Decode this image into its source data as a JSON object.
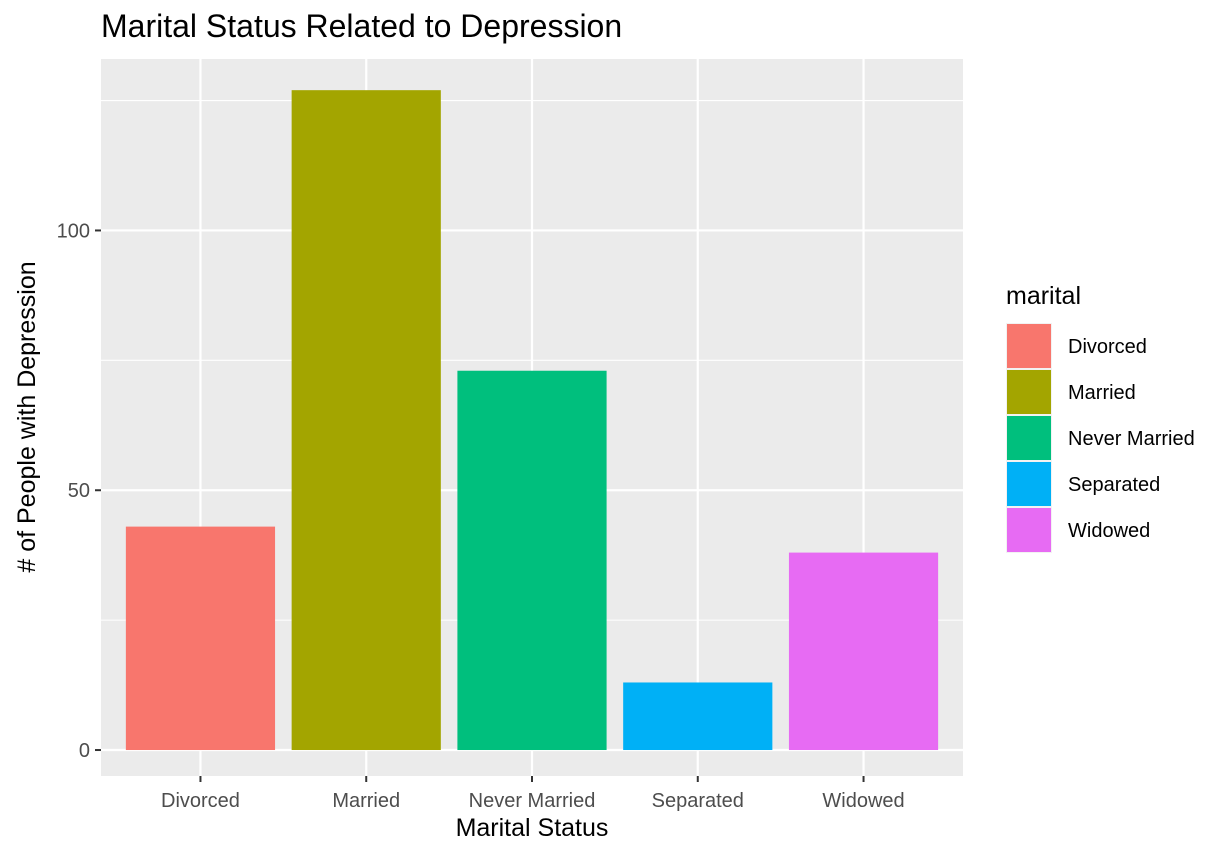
{
  "chart_data": {
    "type": "bar",
    "title": "Marital Status Related to Depression",
    "xlabel": "Marital Status",
    "ylabel": "# of People with Depression",
    "categories": [
      "Divorced",
      "Married",
      "Never Married",
      "Separated",
      "Widowed"
    ],
    "values": [
      43,
      127,
      73,
      13,
      38
    ],
    "colors": [
      "#F8766D",
      "#A3A500",
      "#00BF7D",
      "#00B0F6",
      "#E76BF3"
    ],
    "ylim": [
      -5,
      133
    ],
    "yticks": [
      0,
      50,
      100
    ],
    "ytick_labels": [
      "0",
      "50",
      "100"
    ],
    "grid": true,
    "legend": {
      "title": "marital",
      "position": "right",
      "entries": [
        "Divorced",
        "Married",
        "Never Married",
        "Separated",
        "Widowed"
      ]
    },
    "panel_background": "#EBEBEB",
    "grid_color": "#FFFFFF"
  }
}
